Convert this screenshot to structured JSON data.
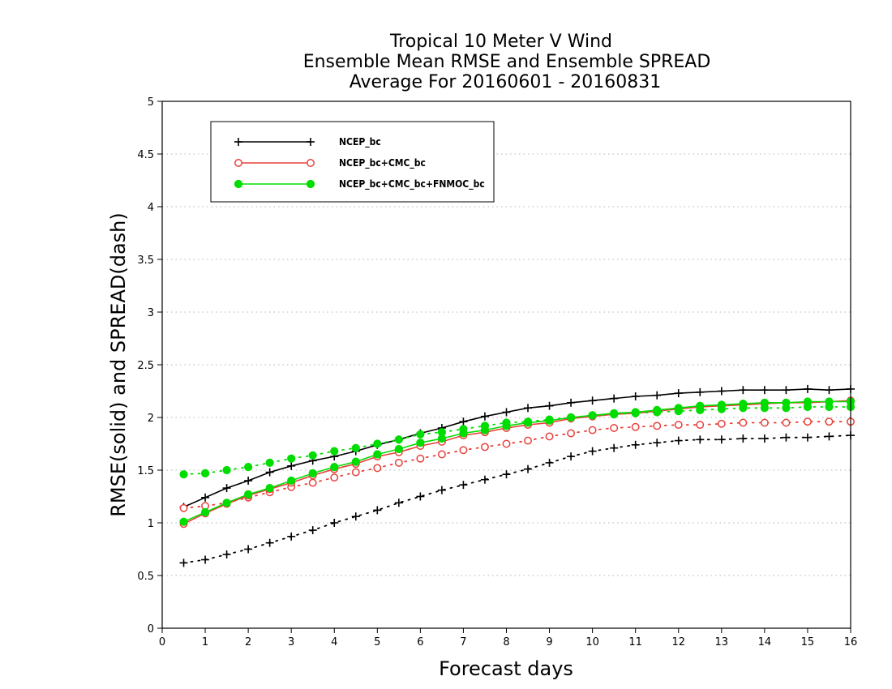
{
  "chart_data": {
    "type": "line",
    "title_lines": [
      "Tropical 10 Meter V Wind",
      "Ensemble Mean RMSE and Ensemble SPREAD",
      "Average For 20160601 - 20160831"
    ],
    "xlabel": "Forecast days",
    "ylabel": "RMSE(solid) and SPREAD(dash)",
    "xlim": [
      0,
      16
    ],
    "ylim": [
      0,
      5
    ],
    "x_ticks": [
      0,
      1,
      2,
      3,
      4,
      5,
      6,
      7,
      8,
      9,
      10,
      11,
      12,
      13,
      14,
      15,
      16
    ],
    "x_tick_labels": [
      "0",
      "1",
      "2",
      "3",
      "4",
      "5",
      "6",
      "7",
      "8",
      "9",
      "10",
      "11",
      "12",
      "13",
      "14",
      "15",
      "16"
    ],
    "y_ticks": [
      0,
      0.5,
      1,
      1.5,
      2,
      2.5,
      3,
      3.5,
      4,
      4.5,
      5
    ],
    "y_tick_labels": [
      "0",
      "0.5",
      "1",
      "1.5",
      "2",
      "2.5",
      "3",
      "3.5",
      "4",
      "4.5",
      "5"
    ],
    "grid": "horizontal dotted",
    "legend_position": "top-left",
    "x": [
      0.5,
      1,
      1.5,
      2,
      2.5,
      3,
      3.5,
      4,
      4.5,
      5,
      5.5,
      6,
      6.5,
      7,
      7.5,
      8,
      8.5,
      9,
      9.5,
      10,
      10.5,
      11,
      11.5,
      12,
      12.5,
      13,
      13.5,
      14,
      14.5,
      15,
      15.5,
      16
    ],
    "series": [
      {
        "name": "NCEP_bc",
        "color": "#000000",
        "marker": "plus",
        "rmse": [
          1.15,
          1.24,
          1.33,
          1.4,
          1.48,
          1.54,
          1.59,
          1.63,
          1.68,
          1.74,
          1.79,
          1.85,
          1.9,
          1.96,
          2.01,
          2.05,
          2.09,
          2.11,
          2.14,
          2.16,
          2.18,
          2.2,
          2.21,
          2.23,
          2.24,
          2.25,
          2.26,
          2.26,
          2.26,
          2.27,
          2.26,
          2.27
        ],
        "spread": [
          0.62,
          0.65,
          0.7,
          0.75,
          0.81,
          0.87,
          0.93,
          1.0,
          1.06,
          1.12,
          1.19,
          1.25,
          1.31,
          1.36,
          1.41,
          1.46,
          1.51,
          1.57,
          1.63,
          1.68,
          1.71,
          1.74,
          1.76,
          1.78,
          1.79,
          1.79,
          1.8,
          1.8,
          1.81,
          1.81,
          1.82,
          1.83
        ]
      },
      {
        "name": "NCEP_bc+CMC_bc",
        "color": "#e8403a",
        "marker": "open-circle",
        "rmse": [
          0.99,
          1.09,
          1.18,
          1.26,
          1.32,
          1.38,
          1.45,
          1.51,
          1.56,
          1.63,
          1.67,
          1.73,
          1.77,
          1.83,
          1.86,
          1.9,
          1.93,
          1.95,
          1.99,
          2.01,
          2.03,
          2.04,
          2.06,
          2.08,
          2.1,
          2.11,
          2.12,
          2.13,
          2.14,
          2.14,
          2.15,
          2.16
        ],
        "spread": [
          1.14,
          1.16,
          1.19,
          1.24,
          1.29,
          1.34,
          1.38,
          1.43,
          1.48,
          1.52,
          1.57,
          1.61,
          1.65,
          1.69,
          1.72,
          1.75,
          1.78,
          1.82,
          1.85,
          1.88,
          1.9,
          1.91,
          1.92,
          1.93,
          1.93,
          1.94,
          1.95,
          1.95,
          1.95,
          1.96,
          1.96,
          1.96
        ]
      },
      {
        "name": "NCEP_bc+CMC_bc+FNMOC_bc",
        "color": "#00dd00",
        "marker": "filled-circle",
        "rmse": [
          1.01,
          1.1,
          1.19,
          1.27,
          1.33,
          1.4,
          1.47,
          1.53,
          1.58,
          1.65,
          1.7,
          1.76,
          1.8,
          1.85,
          1.88,
          1.92,
          1.95,
          1.97,
          2.0,
          2.02,
          2.04,
          2.05,
          2.07,
          2.09,
          2.11,
          2.12,
          2.13,
          2.14,
          2.14,
          2.15,
          2.15,
          2.15
        ],
        "spread": [
          1.46,
          1.47,
          1.5,
          1.53,
          1.57,
          1.61,
          1.64,
          1.68,
          1.71,
          1.75,
          1.79,
          1.84,
          1.86,
          1.89,
          1.92,
          1.95,
          1.96,
          1.98,
          2.0,
          2.02,
          2.03,
          2.04,
          2.05,
          2.06,
          2.07,
          2.08,
          2.09,
          2.09,
          2.09,
          2.1,
          2.1,
          2.1
        ]
      }
    ]
  }
}
